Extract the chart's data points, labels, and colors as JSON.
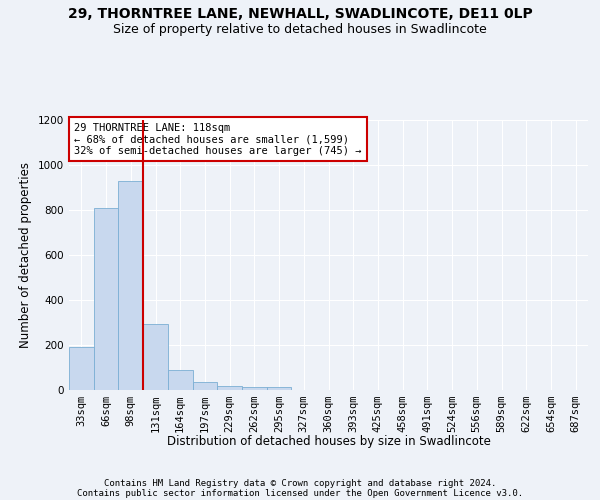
{
  "title1": "29, THORNTREE LANE, NEWHALL, SWADLINCOTE, DE11 0LP",
  "title2": "Size of property relative to detached houses in Swadlincote",
  "xlabel": "Distribution of detached houses by size in Swadlincote",
  "ylabel": "Number of detached properties",
  "categories": [
    "33sqm",
    "66sqm",
    "98sqm",
    "131sqm",
    "164sqm",
    "197sqm",
    "229sqm",
    "262sqm",
    "295sqm",
    "327sqm",
    "360sqm",
    "393sqm",
    "425sqm",
    "458sqm",
    "491sqm",
    "524sqm",
    "556sqm",
    "589sqm",
    "622sqm",
    "654sqm",
    "687sqm"
  ],
  "values": [
    193,
    810,
    930,
    295,
    88,
    36,
    20,
    15,
    12,
    0,
    0,
    0,
    0,
    0,
    0,
    0,
    0,
    0,
    0,
    0,
    0
  ],
  "bar_color": "#c8d8ee",
  "bar_edge_color": "#7bafd4",
  "vline_x_idx": 2,
  "vline_color": "#cc0000",
  "annotation_text": "29 THORNTREE LANE: 118sqm\n← 68% of detached houses are smaller (1,599)\n32% of semi-detached houses are larger (745) →",
  "annotation_box_color": "#ffffff",
  "annotation_box_edge": "#cc0000",
  "ylim": [
    0,
    1200
  ],
  "yticks": [
    0,
    200,
    400,
    600,
    800,
    1000,
    1200
  ],
  "footer1": "Contains HM Land Registry data © Crown copyright and database right 2024.",
  "footer2": "Contains public sector information licensed under the Open Government Licence v3.0.",
  "bg_color": "#eef2f8",
  "plot_bg_color": "#eef2f8",
  "grid_color": "#ffffff",
  "title1_fontsize": 10,
  "title2_fontsize": 9,
  "label_fontsize": 8.5,
  "tick_fontsize": 7.5,
  "annotation_fontsize": 7.5,
  "footer_fontsize": 6.5
}
